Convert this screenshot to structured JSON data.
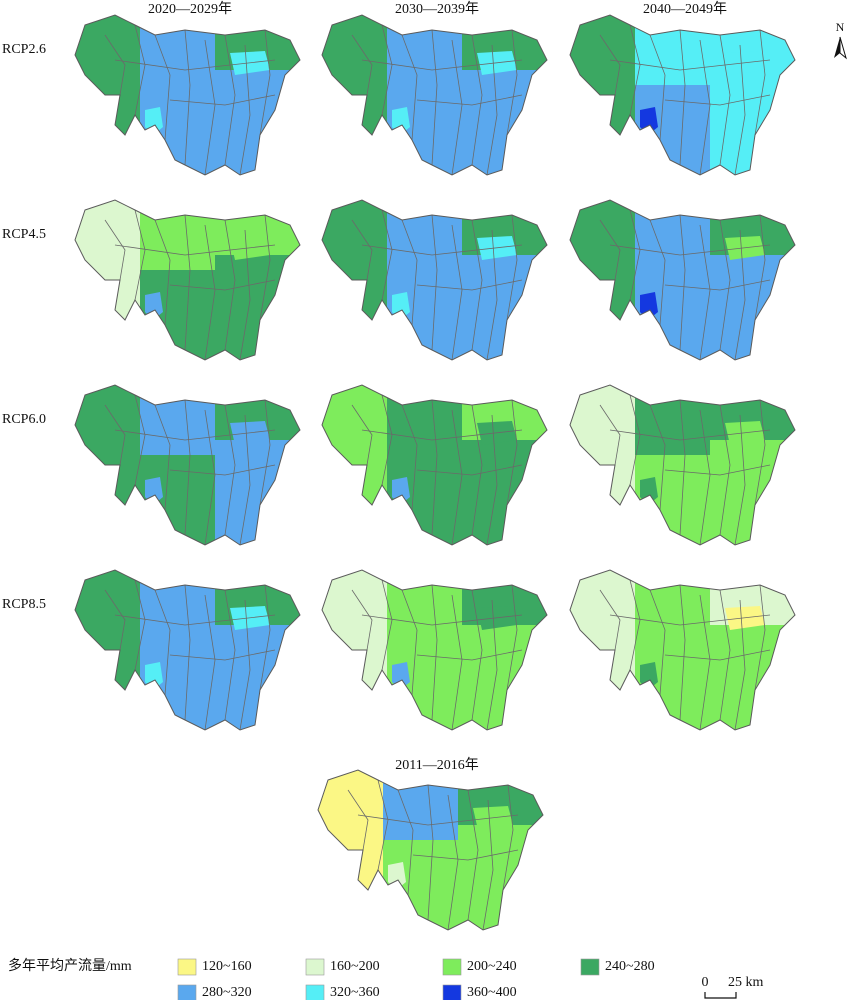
{
  "column_titles": [
    "2020—2029年",
    "2030—2039年",
    "2040—2049年"
  ],
  "row_labels": [
    "RCP2.6",
    "RCP4.5",
    "RCP6.0",
    "RCP8.5"
  ],
  "baseline_title": "2011—2016年",
  "legend": {
    "title": "多年平均产流量/mm",
    "items": [
      {
        "label": "120~160",
        "color": "#fbf785"
      },
      {
        "label": "160~200",
        "color": "#dcf7cf"
      },
      {
        "label": "200~240",
        "color": "#7eec5c"
      },
      {
        "label": "240~280",
        "color": "#3ba862"
      },
      {
        "label": "280~320",
        "color": "#5aa8ee"
      },
      {
        "label": "320~360",
        "color": "#55eef6"
      },
      {
        "label": "360~400",
        "color": "#1438e0"
      }
    ]
  },
  "scale_bar": {
    "zero": "0",
    "distance": "25 km"
  },
  "north": "N"
}
